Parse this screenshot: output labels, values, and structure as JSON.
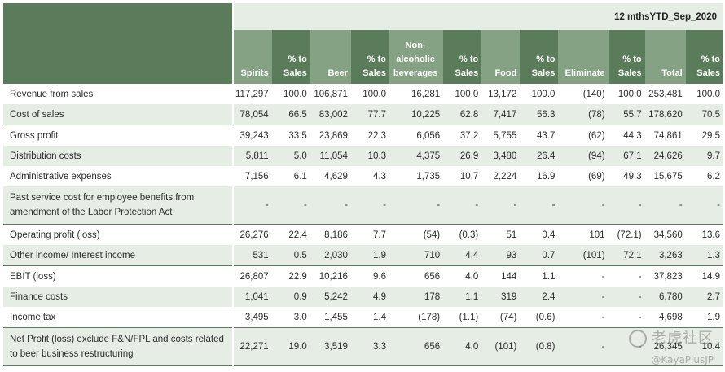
{
  "period": "12 mthsYTD_Sep_2020",
  "columns": [
    {
      "label": "Spirits",
      "kind": "value"
    },
    {
      "label": "% to Sales",
      "kind": "pct"
    },
    {
      "label": "Beer",
      "kind": "value"
    },
    {
      "label": "% to Sales",
      "kind": "pct"
    },
    {
      "label": "Non-alcoholic beverages",
      "kind": "value"
    },
    {
      "label": "% to Sales",
      "kind": "pct"
    },
    {
      "label": "Food",
      "kind": "value"
    },
    {
      "label": "% to Sales",
      "kind": "pct"
    },
    {
      "label": "Eliminate",
      "kind": "value"
    },
    {
      "label": "% to Sales",
      "kind": "pct"
    },
    {
      "label": "Total",
      "kind": "value"
    },
    {
      "label": "% to Sales",
      "kind": "pct"
    }
  ],
  "rows": [
    {
      "label": "Revenue from sales",
      "values": [
        "117,297",
        "100.0",
        "106,871",
        "100.0",
        "16,281",
        "100.0",
        "13,172",
        "100.0",
        "(140)",
        "100.0",
        "253,481",
        "100.0"
      ]
    },
    {
      "label": "Cost of sales",
      "values": [
        "78,054",
        "66.5",
        "83,002",
        "77.7",
        "10,225",
        "62.8",
        "7,417",
        "56.3",
        "(78)",
        "55.7",
        "178,620",
        "70.5"
      ]
    },
    {
      "label": "Gross profit",
      "values": [
        "39,243",
        "33.5",
        "23,869",
        "22.3",
        "6,056",
        "37.2",
        "5,755",
        "43.7",
        "(62)",
        "44.3",
        "74,861",
        "29.5"
      ]
    },
    {
      "label": "Distribution costs",
      "values": [
        "5,811",
        "5.0",
        "11,054",
        "10.3",
        "4,375",
        "26.9",
        "3,480",
        "26.4",
        "(94)",
        "67.1",
        "24,626",
        "9.7"
      ]
    },
    {
      "label": "Administrative expenses",
      "values": [
        "7,156",
        "6.1",
        "4,629",
        "4.3",
        "1,735",
        "10.7",
        "2,224",
        "16.9",
        "(69)",
        "49.3",
        "15,675",
        "6.2"
      ]
    },
    {
      "label": "Past service cost for employee benefits from amendment of the Labor Protection Act",
      "values": [
        "-",
        "-",
        "-",
        "-",
        "-",
        "-",
        "-",
        "-",
        "-",
        "-",
        "-",
        "-"
      ]
    },
    {
      "label": "Operating profit (loss)",
      "values": [
        "26,276",
        "22.4",
        "8,186",
        "7.7",
        "(54)",
        "(0.3)",
        "51",
        "0.4",
        "101",
        "(72.1)",
        "34,560",
        "13.6"
      ]
    },
    {
      "label": "Other income/ Interest income",
      "values": [
        "531",
        "0.5",
        "2,030",
        "1.9",
        "710",
        "4.4",
        "93",
        "0.7",
        "(101)",
        "72.1",
        "3,263",
        "1.3"
      ]
    },
    {
      "label": "EBIT (loss)",
      "values": [
        "26,807",
        "22.9",
        "10,216",
        "9.6",
        "656",
        "4.0",
        "144",
        "1.1",
        "-",
        "-",
        "37,823",
        "14.9"
      ]
    },
    {
      "label": "Finance costs",
      "values": [
        "1,041",
        "0.9",
        "5,242",
        "4.9",
        "178",
        "1.1",
        "319",
        "2.4",
        "-",
        "-",
        "6,780",
        "2.7"
      ]
    },
    {
      "label": "Income tax",
      "values": [
        "3,495",
        "3.0",
        "1,455",
        "1.4",
        "(178)",
        "(1.1)",
        "(74)",
        "(0.6)",
        "-",
        "-",
        "4,698",
        "1.9"
      ]
    },
    {
      "label": "Net Profit (loss) exclude F&N/FPL and costs related to beer business restructuring",
      "values": [
        "22,271",
        "19.0",
        "3,519",
        "3.3",
        "656",
        "4.0",
        "(101)",
        "(0.8)",
        "-",
        "-",
        "26,345",
        "10.4"
      ]
    }
  ],
  "watermark": {
    "line1": "老虎社区",
    "line2": "@KayaPlusJP"
  }
}
